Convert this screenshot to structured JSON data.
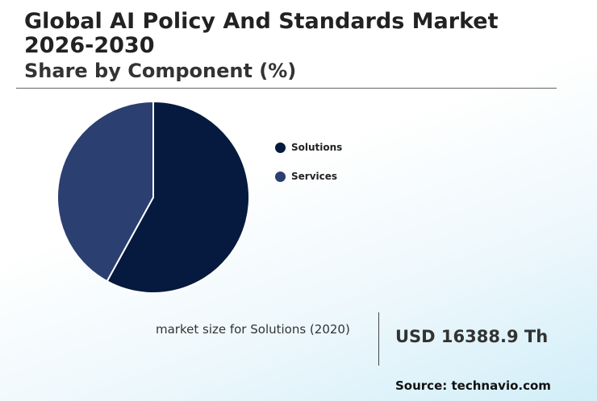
{
  "header": {
    "title": "Global AI Policy And Standards Market 2026-2030",
    "subtitle": "Share by Component (%)"
  },
  "chart_data": {
    "type": "pie",
    "categories": [
      "Solutions",
      "Services"
    ],
    "values": [
      58,
      42
    ],
    "colors": [
      "#061a3f",
      "#2b3f70"
    ],
    "legend_position": "right"
  },
  "stat": {
    "label": "market size for Solutions (2020)",
    "value": "USD 16388.9 Th"
  },
  "footer": {
    "source": "Source: technavio.com"
  }
}
